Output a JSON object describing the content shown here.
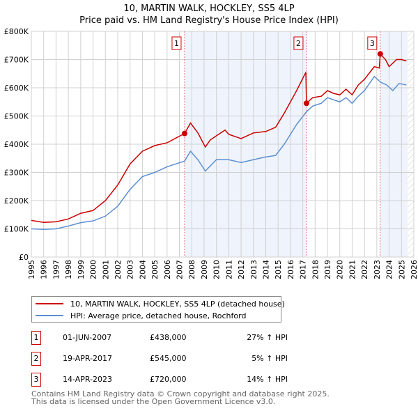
{
  "title": "10, MARTIN WALK, HOCKLEY, SS5 4LP",
  "subtitle": "Price paid vs. HM Land Registry's House Price Index (HPI)",
  "chart_data": {
    "type": "line",
    "title": "10, MARTIN WALK, HOCKLEY, SS5 4LP - Price paid vs. HM Land Registry's House Price Index (HPI)",
    "xlim": [
      1995,
      2026
    ],
    "ylim": [
      0,
      800000
    ],
    "x_ticks": [
      "1995",
      "1996",
      "1997",
      "1998",
      "1999",
      "2000",
      "2001",
      "2002",
      "2003",
      "2004",
      "2005",
      "2006",
      "2007",
      "2008",
      "2009",
      "2010",
      "2011",
      "2012",
      "2013",
      "2014",
      "2015",
      "2016",
      "2017",
      "2018",
      "2019",
      "2020",
      "2021",
      "2022",
      "2023",
      "2024",
      "2025",
      "2026"
    ],
    "y_ticks": [
      {
        "v": 0,
        "label": "£0"
      },
      {
        "v": 100000,
        "label": "£100K"
      },
      {
        "v": 200000,
        "label": "£200K"
      },
      {
        "v": 300000,
        "label": "£300K"
      },
      {
        "v": 400000,
        "label": "£400K"
      },
      {
        "v": 500000,
        "label": "£500K"
      },
      {
        "v": 600000,
        "label": "£600K"
      },
      {
        "v": 700000,
        "label": "£700K"
      },
      {
        "v": 800000,
        "label": "£800K"
      }
    ],
    "grid": true,
    "series": [
      {
        "name": "10, MARTIN WALK, HOCKLEY, SS5 4LP (detached house)",
        "color": "#cc0000",
        "x": [
          1995,
          1996,
          1997,
          1998,
          1999,
          2000,
          2001,
          2002,
          2003,
          2004,
          2005,
          2006,
          2007.42,
          2007.9,
          2008.5,
          2009.1,
          2009.5,
          2010,
          2010.7,
          2011,
          2012,
          2013,
          2014,
          2014.8,
          2015.5,
          2016.5,
          2017.25,
          2017.3,
          2017.8,
          2018.5,
          2019,
          2019.5,
          2020,
          2020.5,
          2021,
          2021.5,
          2022,
          2022.8,
          2023.2,
          2023.28,
          2023.7,
          2024,
          2024.6,
          2025,
          2025.4
        ],
        "y": [
          130000,
          123000,
          125000,
          135000,
          155000,
          165000,
          200000,
          255000,
          330000,
          375000,
          395000,
          405000,
          438000,
          475000,
          440000,
          390000,
          415000,
          430000,
          450000,
          435000,
          420000,
          440000,
          445000,
          460000,
          510000,
          590000,
          655000,
          545000,
          565000,
          570000,
          590000,
          580000,
          575000,
          595000,
          575000,
          610000,
          630000,
          675000,
          670000,
          720000,
          700000,
          675000,
          700000,
          700000,
          695000
        ]
      },
      {
        "name": "HPI: Average price, detached house, Rochford",
        "color": "#5b8fd1",
        "x": [
          1995,
          1996,
          1997,
          1998,
          1999,
          2000,
          2001,
          2002,
          2003,
          2004,
          2005,
          2006,
          2007.42,
          2007.9,
          2008.5,
          2009.1,
          2010,
          2011,
          2012,
          2013,
          2014,
          2014.8,
          2015.5,
          2016.5,
          2017.3,
          2017.8,
          2018.5,
          2019,
          2020,
          2020.5,
          2021,
          2021.5,
          2022,
          2022.8,
          2023.3,
          2023.8,
          2024.3,
          2024.8,
          2025.4
        ],
        "y": [
          100000,
          98000,
          100000,
          110000,
          122000,
          128000,
          145000,
          180000,
          240000,
          285000,
          300000,
          320000,
          340000,
          375000,
          345000,
          305000,
          345000,
          345000,
          335000,
          345000,
          355000,
          360000,
          400000,
          470000,
          515000,
          535000,
          545000,
          565000,
          550000,
          565000,
          545000,
          570000,
          590000,
          640000,
          620000,
          610000,
          590000,
          615000,
          610000
        ]
      }
    ],
    "sales": [
      {
        "label": "1",
        "x": 2007.42,
        "y": 438000,
        "date": "01-JUN-2007",
        "price": "£438,000",
        "hpi": "27% ↑ HPI"
      },
      {
        "label": "2",
        "x": 2017.3,
        "y": 545000,
        "date": "19-APR-2017",
        "price": "£545,000",
        "hpi": "5% ↑ HPI"
      },
      {
        "label": "3",
        "x": 2023.28,
        "y": 720000,
        "date": "14-APR-2023",
        "price": "£720,000",
        "hpi": "14% ↑ HPI"
      }
    ],
    "data_end": 2025.5
  },
  "footer": {
    "line1": "Contains HM Land Registry data © Crown copyright and database right 2025.",
    "line2": "This data is licensed under the Open Government Licence v3.0."
  }
}
